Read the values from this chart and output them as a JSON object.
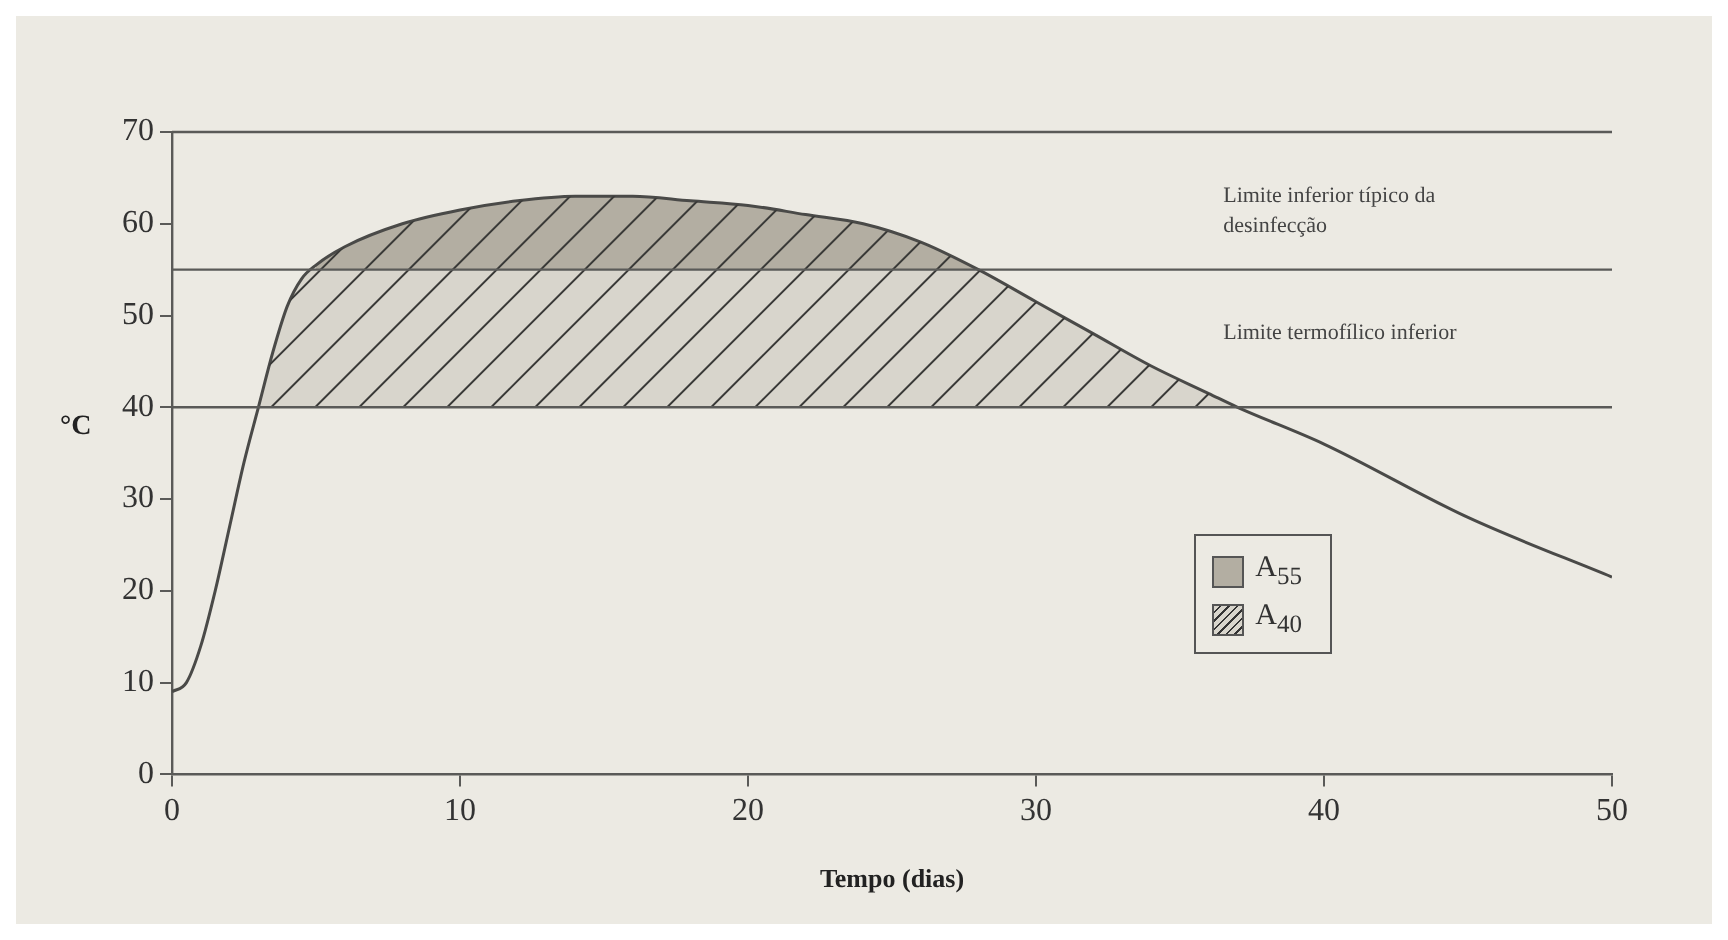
{
  "chart_data": {
    "type": "line",
    "xlabel": "Tempo (dias)",
    "ylabel": "°C",
    "xlim": [
      0,
      50
    ],
    "xticks": [
      0,
      10,
      20,
      30,
      40,
      50
    ],
    "ylim": [
      0,
      70
    ],
    "yticks": [
      0,
      10,
      20,
      30,
      40,
      50,
      60,
      70
    ],
    "grid": false,
    "legend": "bottom right",
    "marker": "none",
    "line_style": "solid",
    "series": [
      {
        "type": "line",
        "color": "#4a4a48",
        "x": [
          0,
          0.5,
          1,
          1.5,
          2,
          2.5,
          3,
          3.5,
          4,
          4.5,
          5,
          6,
          8,
          10,
          12,
          14,
          16,
          18,
          20,
          22,
          24,
          26,
          28,
          30,
          32,
          34,
          36,
          37,
          40,
          45,
          50
        ],
        "values": [
          9,
          10,
          14,
          20,
          27,
          34,
          40,
          46,
          51,
          54,
          55.5,
          57.5,
          60,
          61.5,
          62.5,
          63,
          63,
          62.5,
          62,
          61,
          60,
          58,
          55,
          51.5,
          48,
          44.5,
          41.5,
          40,
          36,
          28,
          21.5
        ]
      },
      {
        "type": "area",
        "name": "A$_{40}$",
        "color": "#d8d5cc",
        "x": [
          3,
          3.5,
          4,
          4.5,
          5,
          6,
          8,
          10,
          12,
          14,
          16,
          18,
          20,
          22,
          24,
          26,
          28,
          30,
          32,
          34,
          36,
          37
        ],
        "values": [
          40,
          46,
          51,
          54,
          55.5,
          57.5,
          60,
          61.5,
          62.5,
          63,
          63,
          62.5,
          62,
          61,
          60,
          58,
          55,
          51.5,
          48,
          44.5,
          41.5,
          40
        ]
      },
      {
        "type": "area",
        "name": "A$_{55}$",
        "color": "#b3aea2",
        "x": [
          5,
          6,
          8,
          10,
          12,
          14,
          16,
          18,
          20,
          22,
          24,
          26,
          28
        ],
        "values": [
          55.5,
          57.5,
          60,
          61.5,
          62.5,
          63,
          63,
          62.5,
          62,
          61,
          60,
          58,
          55
        ]
      }
    ],
    "ref_lines": [
      {
        "axis": "y",
        "value": 55,
        "label": "Limite inferior típico da desinfecção",
        "color": "#5a5a58"
      },
      {
        "axis": "y",
        "value": 40,
        "label": "Limite termofílico inferior",
        "color": "#5a5a58"
      }
    ]
  }
}
